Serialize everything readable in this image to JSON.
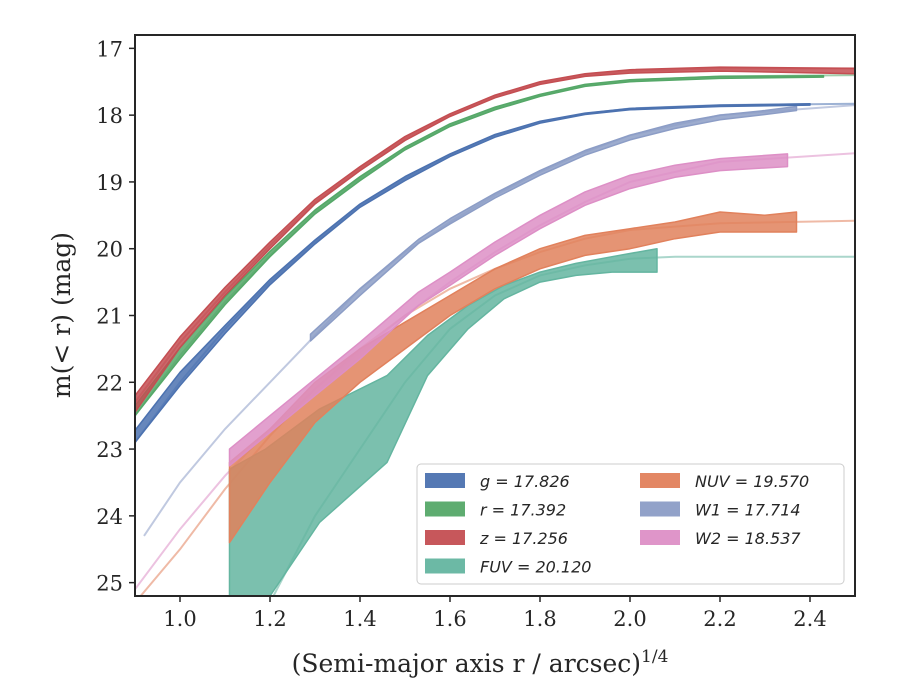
{
  "chart_data": {
    "type": "line",
    "xlabel": "(Semi-major axis r / arcsec)",
    "xlabel_superscript": "1/4",
    "ylabel": "m(< r) (mag)",
    "xlim": [
      0.9,
      2.5
    ],
    "ylim": [
      25.2,
      16.8
    ],
    "y_inverted": true,
    "grid": false,
    "legend_position": "lower-right",
    "xticks": [
      "1.0",
      "1.2",
      "1.4",
      "1.6",
      "1.8",
      "2.0",
      "2.2",
      "2.4"
    ],
    "yticks": [
      "17",
      "18",
      "19",
      "20",
      "21",
      "22",
      "23",
      "24",
      "25"
    ],
    "series": [
      {
        "name": "g = 17.826",
        "color": "#4c72b0",
        "model_x": [
          0.9,
          1.0,
          1.1,
          1.2,
          1.3,
          1.4,
          1.5,
          1.6,
          1.7,
          1.8,
          1.9,
          2.0,
          2.2,
          2.5
        ],
        "model_y": [
          22.9,
          22.0,
          21.2,
          20.5,
          19.9,
          19.35,
          18.95,
          18.6,
          18.3,
          18.1,
          17.98,
          17.9,
          17.85,
          17.83
        ],
        "x": [
          0.9,
          1.0,
          1.1,
          1.2,
          1.3,
          1.4,
          1.5,
          1.6,
          1.7,
          1.8,
          1.9,
          2.0,
          2.2,
          2.4
        ],
        "y_low": [
          22.72,
          21.85,
          21.15,
          20.46,
          19.87,
          19.33,
          18.92,
          18.58,
          18.29,
          18.09,
          17.97,
          17.9,
          17.85,
          17.83
        ],
        "y_high": [
          22.9,
          22.05,
          21.27,
          20.54,
          19.93,
          19.38,
          18.98,
          18.62,
          18.33,
          18.12,
          17.99,
          17.92,
          17.87,
          17.85
        ]
      },
      {
        "name": "r = 17.392",
        "color": "#55a868",
        "model_x": [
          0.9,
          1.0,
          1.1,
          1.2,
          1.3,
          1.4,
          1.5,
          1.6,
          1.7,
          1.8,
          1.9,
          2.0,
          2.2,
          2.5
        ],
        "model_y": [
          22.5,
          21.6,
          20.8,
          20.1,
          19.45,
          18.95,
          18.5,
          18.15,
          17.9,
          17.7,
          17.55,
          17.48,
          17.42,
          17.4
        ],
        "x": [
          0.9,
          1.0,
          1.1,
          1.2,
          1.3,
          1.4,
          1.5,
          1.6,
          1.7,
          1.8,
          1.9,
          2.0,
          2.2,
          2.43
        ],
        "y_low": [
          22.35,
          21.48,
          20.72,
          20.04,
          19.42,
          18.92,
          18.48,
          18.13,
          17.88,
          17.69,
          17.54,
          17.47,
          17.42,
          17.41
        ],
        "y_high": [
          22.5,
          21.65,
          20.84,
          20.12,
          19.48,
          18.98,
          18.52,
          18.17,
          17.92,
          17.72,
          17.57,
          17.5,
          17.45,
          17.43
        ]
      },
      {
        "name": "z = 17.256",
        "color": "#c44e52",
        "model_x": [
          0.9,
          1.0,
          1.1,
          1.2,
          1.3,
          1.4,
          1.5,
          1.6,
          1.7,
          1.8,
          1.9,
          2.0,
          2.2,
          2.5
        ],
        "model_y": [
          22.3,
          21.4,
          20.65,
          19.95,
          19.3,
          18.8,
          18.35,
          18.0,
          17.72,
          17.52,
          17.4,
          17.34,
          17.3,
          17.3
        ],
        "x": [
          0.9,
          1.0,
          1.1,
          1.2,
          1.3,
          1.4,
          1.5,
          1.6,
          1.7,
          1.8,
          1.9,
          2.0,
          2.2,
          2.5
        ],
        "y_low": [
          22.2,
          21.32,
          20.58,
          19.9,
          19.26,
          18.77,
          18.32,
          17.98,
          17.7,
          17.5,
          17.38,
          17.32,
          17.28,
          17.3
        ],
        "y_high": [
          22.45,
          21.48,
          20.7,
          20.0,
          19.33,
          18.83,
          18.38,
          18.02,
          17.74,
          17.54,
          17.42,
          17.37,
          17.34,
          17.38
        ]
      },
      {
        "name": "FUV = 20.120",
        "color": "#64b5a0",
        "model_x": [
          1.2,
          1.3,
          1.4,
          1.5,
          1.6,
          1.7,
          1.8,
          1.9,
          2.0,
          2.1,
          2.3,
          2.5
        ],
        "model_y": [
          25.3,
          24.0,
          23.0,
          22.0,
          21.2,
          20.7,
          20.4,
          20.25,
          20.15,
          20.12,
          20.12,
          20.12
        ],
        "x": [
          1.11,
          1.19,
          1.31,
          1.46,
          1.55,
          1.64,
          1.72,
          1.8,
          1.88,
          1.96,
          2.06
        ],
        "y_low": [
          23.3,
          23.0,
          22.4,
          21.9,
          21.3,
          20.85,
          20.55,
          20.35,
          20.22,
          20.12,
          20.0
        ],
        "y_high": [
          25.3,
          25.3,
          24.1,
          23.2,
          21.9,
          21.2,
          20.75,
          20.5,
          20.4,
          20.35,
          20.35
        ]
      },
      {
        "name": "NUV = 19.570",
        "color": "#e1815c",
        "model_x": [
          0.9,
          1.0,
          1.1,
          1.2,
          1.3,
          1.4,
          1.5,
          1.6,
          1.7,
          1.8,
          1.9,
          2.0,
          2.2,
          2.5
        ],
        "model_y": [
          25.3,
          24.5,
          23.6,
          22.8,
          22.1,
          21.5,
          21.0,
          20.6,
          20.3,
          20.05,
          19.85,
          19.72,
          19.62,
          19.58
        ],
        "x": [
          1.11,
          1.2,
          1.3,
          1.4,
          1.5,
          1.6,
          1.7,
          1.8,
          1.9,
          2.0,
          2.1,
          2.2,
          2.3,
          2.37
        ],
        "y_low": [
          23.2,
          22.7,
          22.0,
          21.5,
          21.1,
          20.7,
          20.3,
          20.0,
          19.8,
          19.7,
          19.6,
          19.45,
          19.5,
          19.45
        ],
        "y_high": [
          24.4,
          23.5,
          22.6,
          22.0,
          21.5,
          21.0,
          20.6,
          20.3,
          20.1,
          20.0,
          19.85,
          19.75,
          19.75,
          19.75
        ]
      },
      {
        "name": "W1 = 17.714",
        "color": "#8c9dc6",
        "model_x": [
          0.92,
          1.0,
          1.1,
          1.2,
          1.3,
          1.4,
          1.5,
          1.6,
          1.7,
          1.8,
          1.9,
          2.0,
          2.2,
          2.5
        ],
        "model_y": [
          24.3,
          23.5,
          22.7,
          22.0,
          21.3,
          20.6,
          20.05,
          19.6,
          19.2,
          18.85,
          18.55,
          18.3,
          18.0,
          17.85
        ],
        "x": [
          1.29,
          1.4,
          1.53,
          1.6,
          1.7,
          1.8,
          1.9,
          2.0,
          2.1,
          2.2,
          2.3,
          2.37
        ],
        "y_low": [
          21.28,
          20.6,
          19.86,
          19.55,
          19.17,
          18.83,
          18.53,
          18.3,
          18.12,
          18.0,
          17.93,
          17.87
        ],
        "y_high": [
          21.38,
          20.7,
          19.92,
          19.63,
          19.24,
          18.9,
          18.6,
          18.37,
          18.2,
          18.07,
          17.99,
          17.93
        ]
      },
      {
        "name": "W2 = 18.537",
        "color": "#dd8fc6",
        "model_x": [
          0.9,
          1.0,
          1.1,
          1.2,
          1.3,
          1.4,
          1.5,
          1.6,
          1.7,
          1.8,
          1.9,
          2.0,
          2.2,
          2.5
        ],
        "model_y": [
          25.1,
          24.2,
          23.4,
          22.7,
          22.1,
          21.55,
          21.0,
          20.5,
          20.05,
          19.65,
          19.3,
          19.0,
          18.7,
          18.57
        ],
        "x": [
          1.11,
          1.2,
          1.3,
          1.4,
          1.53,
          1.6,
          1.7,
          1.8,
          1.9,
          2.0,
          2.1,
          2.2,
          2.35
        ],
        "y_low": [
          23.0,
          22.5,
          21.95,
          21.4,
          20.65,
          20.35,
          19.9,
          19.5,
          19.15,
          18.9,
          18.75,
          18.65,
          18.58
        ],
        "y_high": [
          23.25,
          22.75,
          22.2,
          21.65,
          20.85,
          20.55,
          20.1,
          19.7,
          19.35,
          19.1,
          18.93,
          18.83,
          18.77
        ]
      }
    ]
  }
}
